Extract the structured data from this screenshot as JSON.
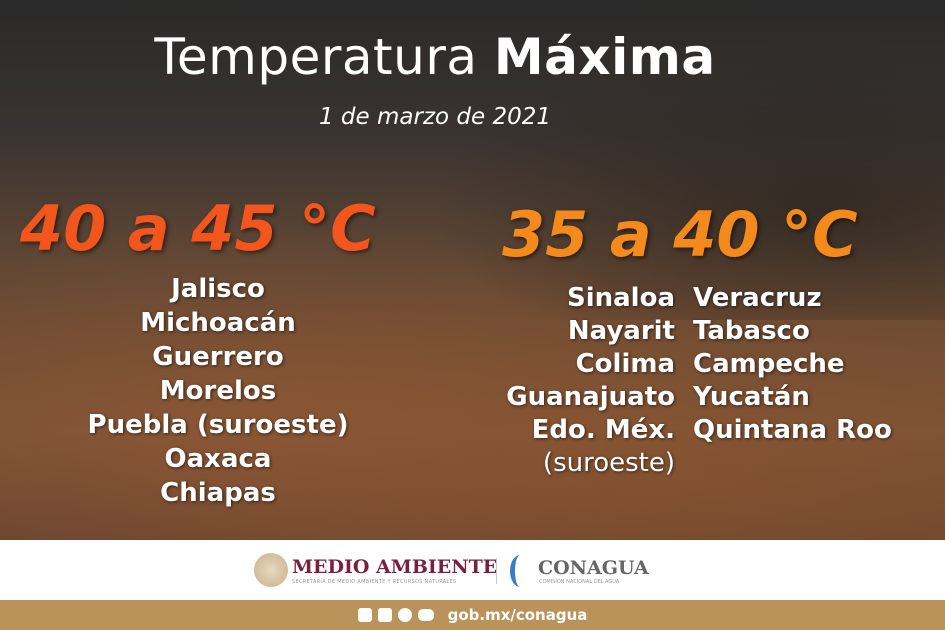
{
  "title": {
    "regular": "Temperatura ",
    "bold": "Máxima"
  },
  "date": "1 de marzo de 2021",
  "range_high": {
    "heading": "40 a 45 °C",
    "color": "#f2561c",
    "states": [
      "Jalisco",
      "Michoacán",
      "Guerrero",
      "Morelos",
      "Puebla (suroeste)",
      "Oaxaca",
      "Chiapas"
    ]
  },
  "range_mid": {
    "heading": "35 a 40 °C",
    "color": "#f4891c",
    "states_col1": [
      "Sinaloa",
      "Nayarit",
      "Colima",
      "Guanajuato",
      "Edo. Méx."
    ],
    "states_col1_note": "(suroeste)",
    "states_col2": [
      "Veracruz",
      "Tabasco",
      "Campeche",
      "Yucatán",
      "Quintana Roo"
    ]
  },
  "footer": {
    "logo1": "MEDIO AMBIENTE",
    "logo1_sub": "SECRETARÍA DE MEDIO AMBIENTE Y RECURSOS NATURALES",
    "logo2": "CONAGUA",
    "logo2_sub": "COMISIÓN NACIONAL DEL AGUA",
    "social_icons": [
      "facebook-icon",
      "twitter-icon",
      "instagram-icon",
      "youtube-icon"
    ],
    "url": "gob.mx/conagua"
  }
}
